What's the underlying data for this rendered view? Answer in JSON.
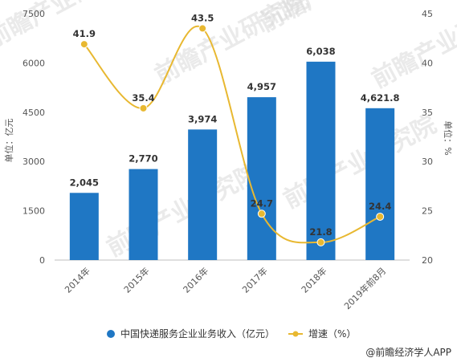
{
  "chart_data": {
    "type": "bar",
    "categories": [
      "2014年",
      "2015年",
      "2016年",
      "2017年",
      "2018年",
      "2019年前8月"
    ],
    "series": [
      {
        "name": "中国快递服务企业业务收入（亿元）",
        "type": "bar",
        "axis": "left",
        "values": [
          2045,
          2770,
          3974,
          4957,
          6038,
          4621.8
        ],
        "labels": [
          "2,045",
          "2,770",
          "3,974",
          "4,957",
          "6,038",
          "4,621.8"
        ],
        "color": "#1f77c4"
      },
      {
        "name": "增速（%）",
        "type": "line",
        "axis": "right",
        "values": [
          41.9,
          35.4,
          43.5,
          24.7,
          21.8,
          24.4
        ],
        "labels": [
          "41.9",
          "35.4",
          "43.5",
          "24.7",
          "21.8",
          "24.4"
        ],
        "color": "#e8b831"
      }
    ],
    "ylabel_left": "单位：亿元",
    "ylabel_right": "单位：%",
    "ylim_left": [
      0,
      7500
    ],
    "yticks_left": [
      "0",
      "1500",
      "3000",
      "4500",
      "6000",
      "7500"
    ],
    "ylim_right": [
      20,
      45
    ],
    "yticks_right": [
      "20",
      "25",
      "30",
      "35",
      "40",
      "45"
    ],
    "grid": false,
    "legend_position": "bottom"
  },
  "source": "@前瞻经济学人APP",
  "watermark_text": "前瞻产业研究院"
}
